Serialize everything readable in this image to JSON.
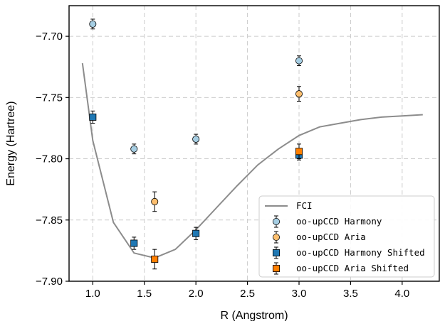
{
  "chart_data": {
    "type": "scatter",
    "xlabel": "R (Angstrom)",
    "ylabel": "Energy (Hartree)",
    "xlim": [
      0.77,
      4.36
    ],
    "ylim": [
      -7.9,
      -7.675
    ],
    "x_ticks": [
      1.0,
      1.5,
      2.0,
      2.5,
      3.0,
      3.5,
      4.0
    ],
    "x_tick_labels": [
      "1.0",
      "1.5",
      "2.0",
      "2.5",
      "3.0",
      "3.5",
      "4.0"
    ],
    "y_ticks": [
      -7.7,
      -7.75,
      -7.8,
      -7.85,
      -7.9
    ],
    "y_tick_labels": [
      "−7.70",
      "−7.75",
      "−7.80",
      "−7.85",
      "−7.90"
    ],
    "grid": true,
    "legend_position": "lower-right",
    "series": [
      {
        "name": "FCI",
        "kind": "line",
        "color": "#8c8c8c",
        "x": [
          0.9,
          1.0,
          1.2,
          1.4,
          1.6,
          1.8,
          2.0,
          2.2,
          2.4,
          2.6,
          2.8,
          3.0,
          3.2,
          3.4,
          3.6,
          3.8,
          4.0,
          4.2
        ],
        "y": [
          -7.722,
          -7.785,
          -7.852,
          -7.877,
          -7.881,
          -7.874,
          -7.858,
          -7.84,
          -7.822,
          -7.805,
          -7.792,
          -7.781,
          -7.774,
          -7.771,
          -7.768,
          -7.766,
          -7.765,
          -7.764
        ]
      },
      {
        "name": "oo-upCCD Harmony",
        "kind": "points",
        "marker": "circle",
        "color": "#a6cee3",
        "x": [
          1.0,
          1.4,
          2.0,
          3.0
        ],
        "y": [
          -7.69,
          -7.792,
          -7.784,
          -7.72
        ],
        "err": [
          0.004,
          0.004,
          0.004,
          0.004
        ]
      },
      {
        "name": "oo-upCCD Aria",
        "kind": "points",
        "marker": "circle",
        "color": "#fdbf6f",
        "x": [
          1.6,
          3.0
        ],
        "y": [
          -7.835,
          -7.747
        ],
        "err": [
          0.008,
          0.006
        ]
      },
      {
        "name": "oo-upCCD Harmony Shifted",
        "kind": "points",
        "marker": "square",
        "color": "#1f78b4",
        "x": [
          1.0,
          1.4,
          2.0,
          3.0
        ],
        "y": [
          -7.766,
          -7.869,
          -7.861,
          -7.797
        ],
        "err": [
          0.005,
          0.005,
          0.005,
          0.004
        ]
      },
      {
        "name": "oo-upCCD Aria Shifted",
        "kind": "points",
        "marker": "square",
        "color": "#ff7f00",
        "x": [
          1.6,
          3.0
        ],
        "y": [
          -7.882,
          -7.794
        ],
        "err": [
          0.008,
          0.006
        ]
      }
    ]
  }
}
